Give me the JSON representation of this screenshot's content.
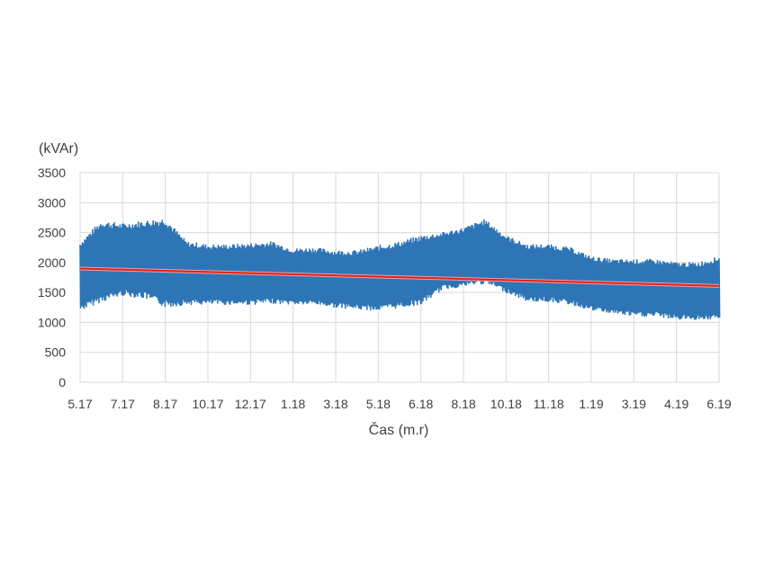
{
  "chart_data": {
    "type": "line",
    "title": "",
    "xlabel": "Čas (m.r)",
    "ylabel": "(kVAr)",
    "ylim": [
      0,
      3500
    ],
    "yticks": [
      0,
      500,
      1000,
      1500,
      2000,
      2500,
      3000,
      3500
    ],
    "yticks_labels": [
      "0",
      "500",
      "1000",
      "1500",
      "2000",
      "2500",
      "3000",
      "3500"
    ],
    "x_categories": [
      "5.17",
      "7.17",
      "8.17",
      "10.17",
      "12.17",
      "1.18",
      "3.18",
      "5.18",
      "6.18",
      "8.18",
      "10.18",
      "11.18",
      "1.19",
      "3.19",
      "4.19",
      "6.19"
    ],
    "grid": true,
    "legend": "none",
    "colors": {
      "series": "#2e75b6",
      "trend": "#e0201b",
      "trend_edge": "#f2a0a0",
      "grid": "#d9d9d9",
      "text": "#404040"
    },
    "series": [
      {
        "style": "oscillating band",
        "x": [
          0,
          0.5,
          1,
          1.5,
          2,
          2.5,
          3,
          3.5,
          4,
          4.5,
          5,
          5.5,
          6,
          6.5,
          7,
          7.5,
          8,
          8.5,
          9,
          9.5,
          10,
          10.5,
          11,
          11.5,
          12,
          12.5,
          13,
          13.5,
          14,
          14.5,
          15
        ],
        "upper": [
          2350,
          2700,
          2650,
          2700,
          2750,
          2350,
          2300,
          2300,
          2320,
          2350,
          2230,
          2250,
          2200,
          2200,
          2280,
          2350,
          2450,
          2500,
          2580,
          2720,
          2450,
          2300,
          2300,
          2250,
          2100,
          2050,
          2050,
          2050,
          2000,
          2000,
          2100
        ],
        "lower": [
          1200,
          1350,
          1450,
          1400,
          1250,
          1300,
          1300,
          1300,
          1300,
          1320,
          1300,
          1300,
          1250,
          1220,
          1200,
          1250,
          1300,
          1550,
          1600,
          1650,
          1500,
          1350,
          1350,
          1300,
          1200,
          1150,
          1100,
          1100,
          1050,
          1050,
          1050
        ]
      },
      {
        "name": "",
        "style": "linear trend",
        "x": [
          0,
          15
        ],
        "values": [
          1900,
          1610
        ]
      }
    ]
  }
}
